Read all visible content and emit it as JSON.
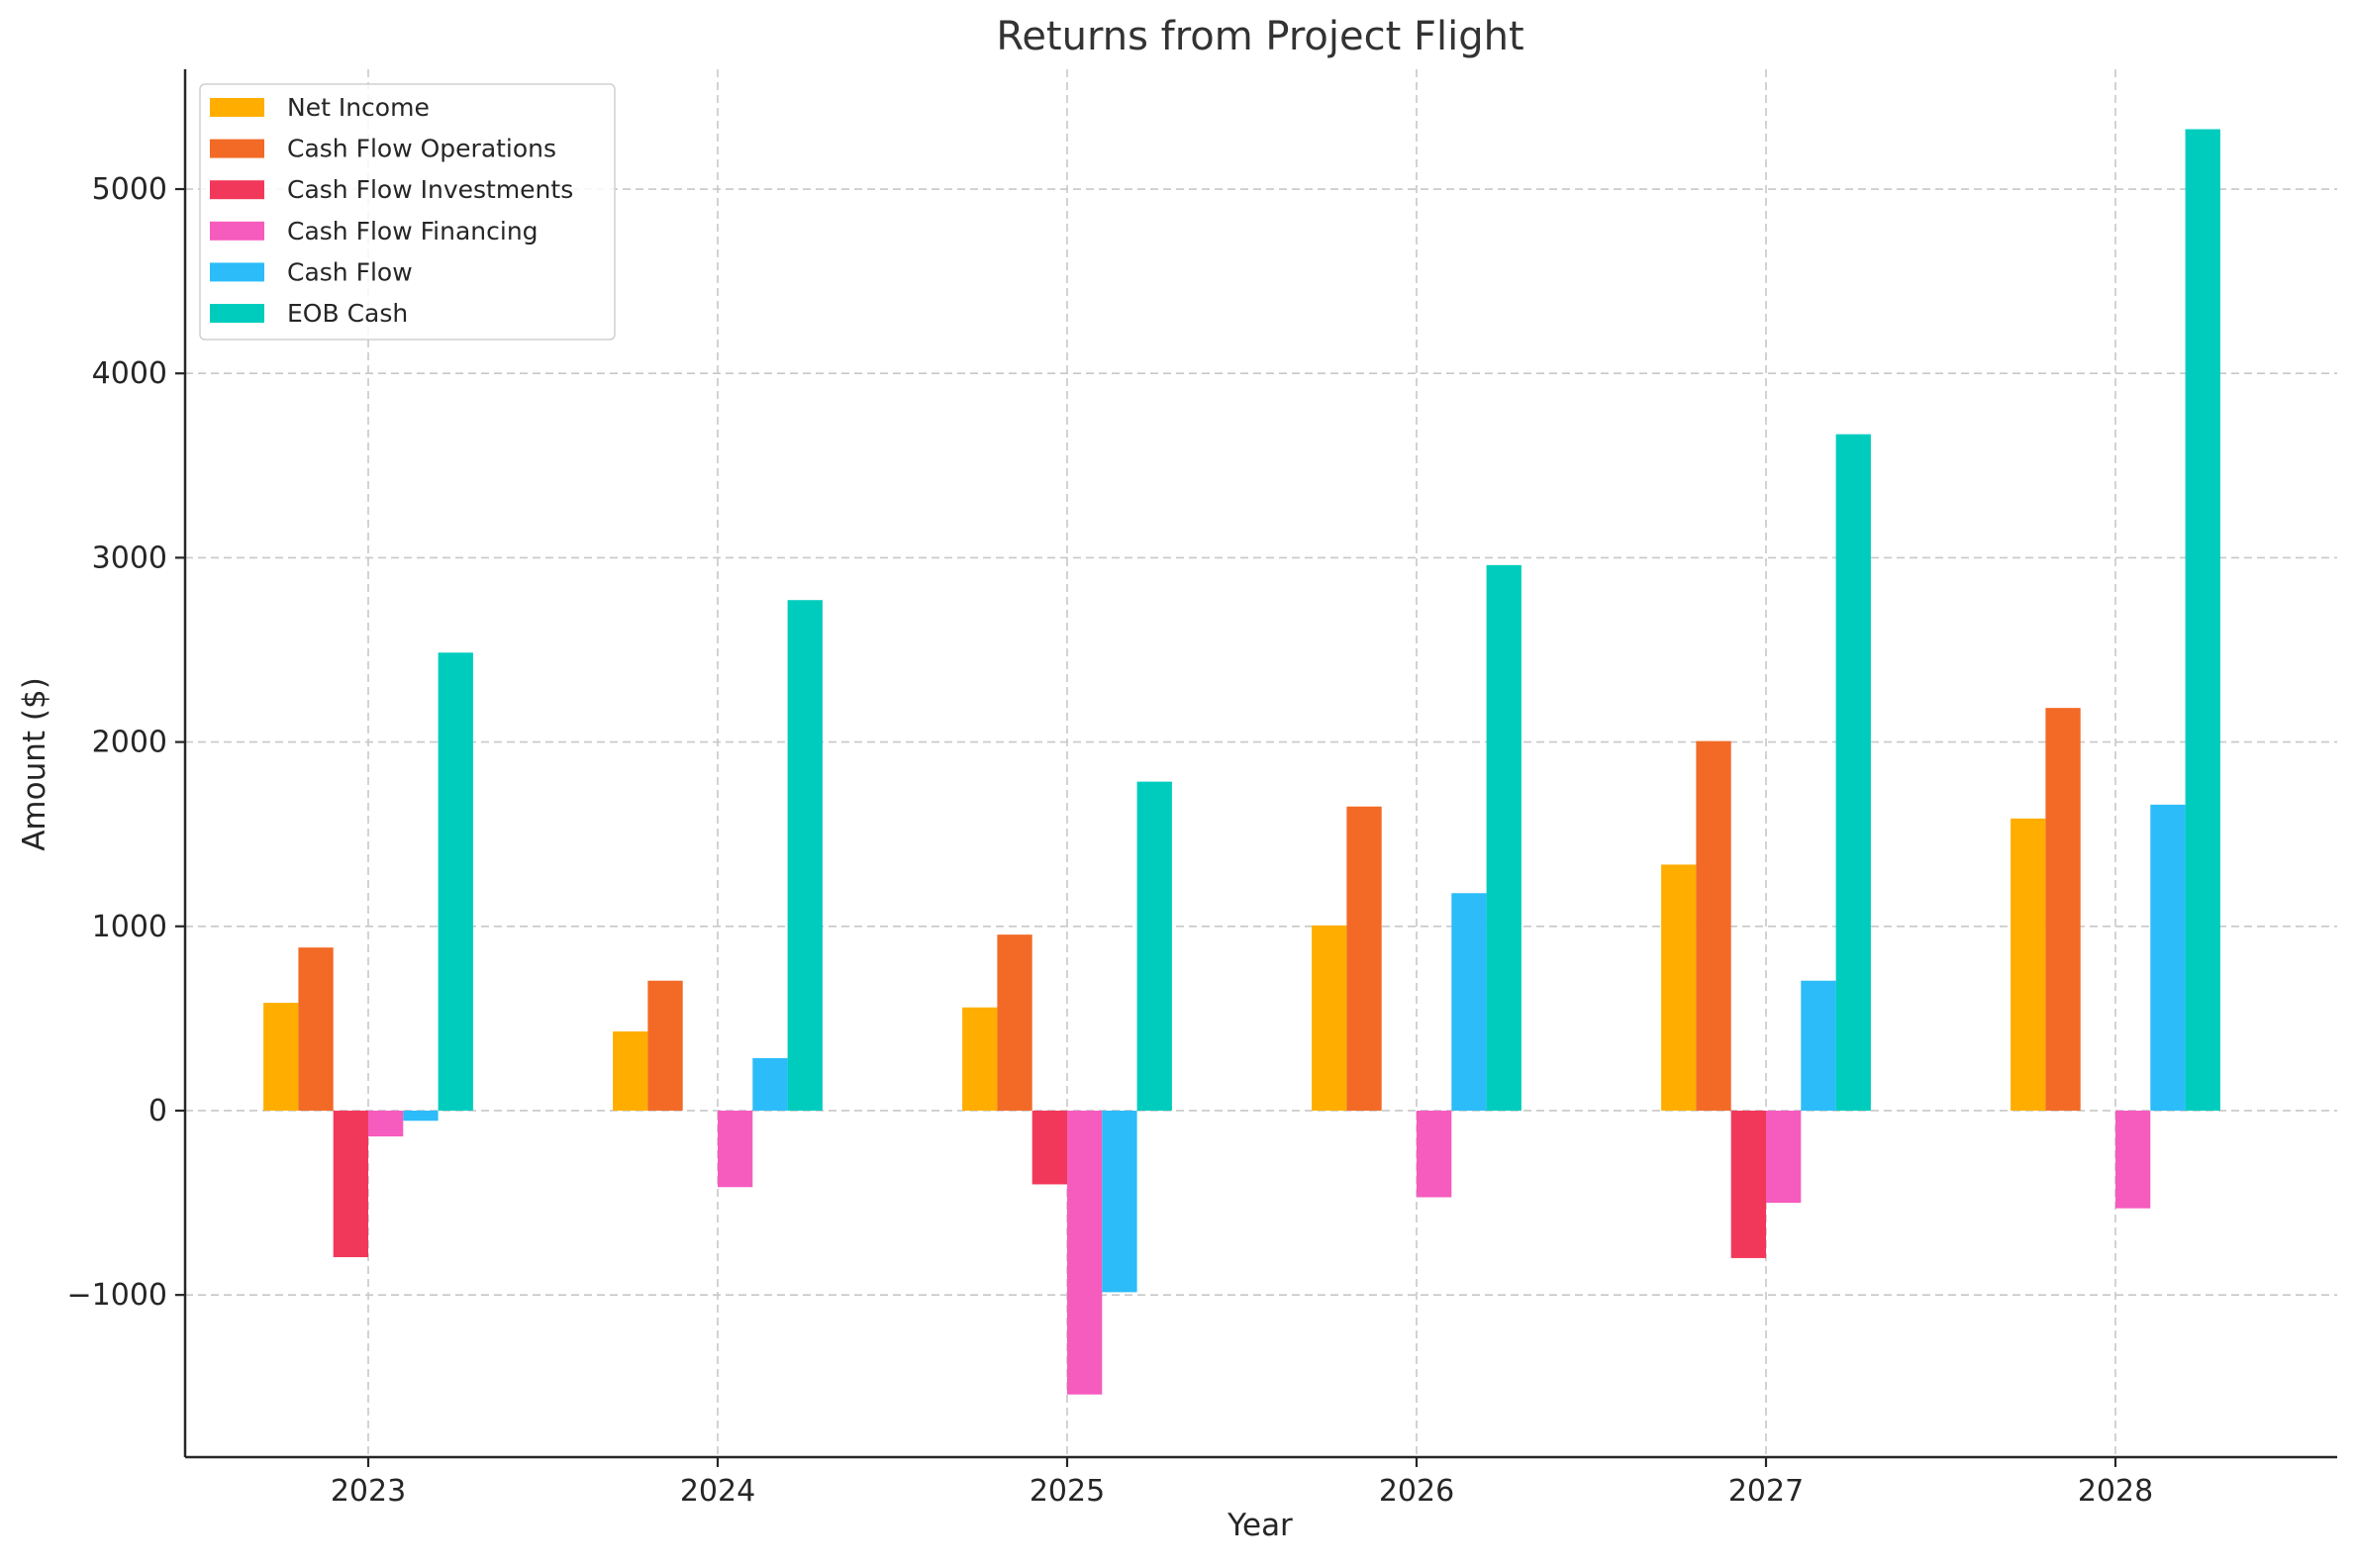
{
  "chart_data": {
    "type": "bar",
    "title": "Returns from Project Flight",
    "xlabel": "Year",
    "ylabel": "Amount ($)",
    "categories": [
      "2023",
      "2024",
      "2025",
      "2026",
      "2027",
      "2028"
    ],
    "ylim": [
      -1880,
      5650
    ],
    "yticks": [
      -1000,
      0,
      1000,
      2000,
      3000,
      4000,
      5000
    ],
    "ytick_labels": [
      "−1000",
      "0",
      "1000",
      "2000",
      "3000",
      "4000",
      "5000"
    ],
    "grid": true,
    "legend_position": "top-left",
    "series": [
      {
        "name": "Net Income",
        "color": "#FFAE00",
        "values": [
          585,
          430,
          560,
          1005,
          1335,
          1585
        ]
      },
      {
        "name": "Cash Flow Operations",
        "color": "#F26A26",
        "values": [
          885,
          705,
          955,
          1650,
          2005,
          2185
        ]
      },
      {
        "name": "Cash Flow Investments",
        "color": "#F2385A",
        "values": [
          -795,
          0,
          -400,
          0,
          -800,
          0
        ]
      },
      {
        "name": "Cash Flow Financing",
        "color": "#F65BBE",
        "values": [
          -140,
          -415,
          -1540,
          -470,
          -500,
          -530
        ]
      },
      {
        "name": "Cash Flow",
        "color": "#2CBCF9",
        "values": [
          -55,
          285,
          -985,
          1180,
          705,
          1660
        ]
      },
      {
        "name": "EOB Cash",
        "color": "#00CCBE",
        "values": [
          2485,
          2770,
          1785,
          2960,
          3670,
          5325
        ]
      }
    ]
  }
}
